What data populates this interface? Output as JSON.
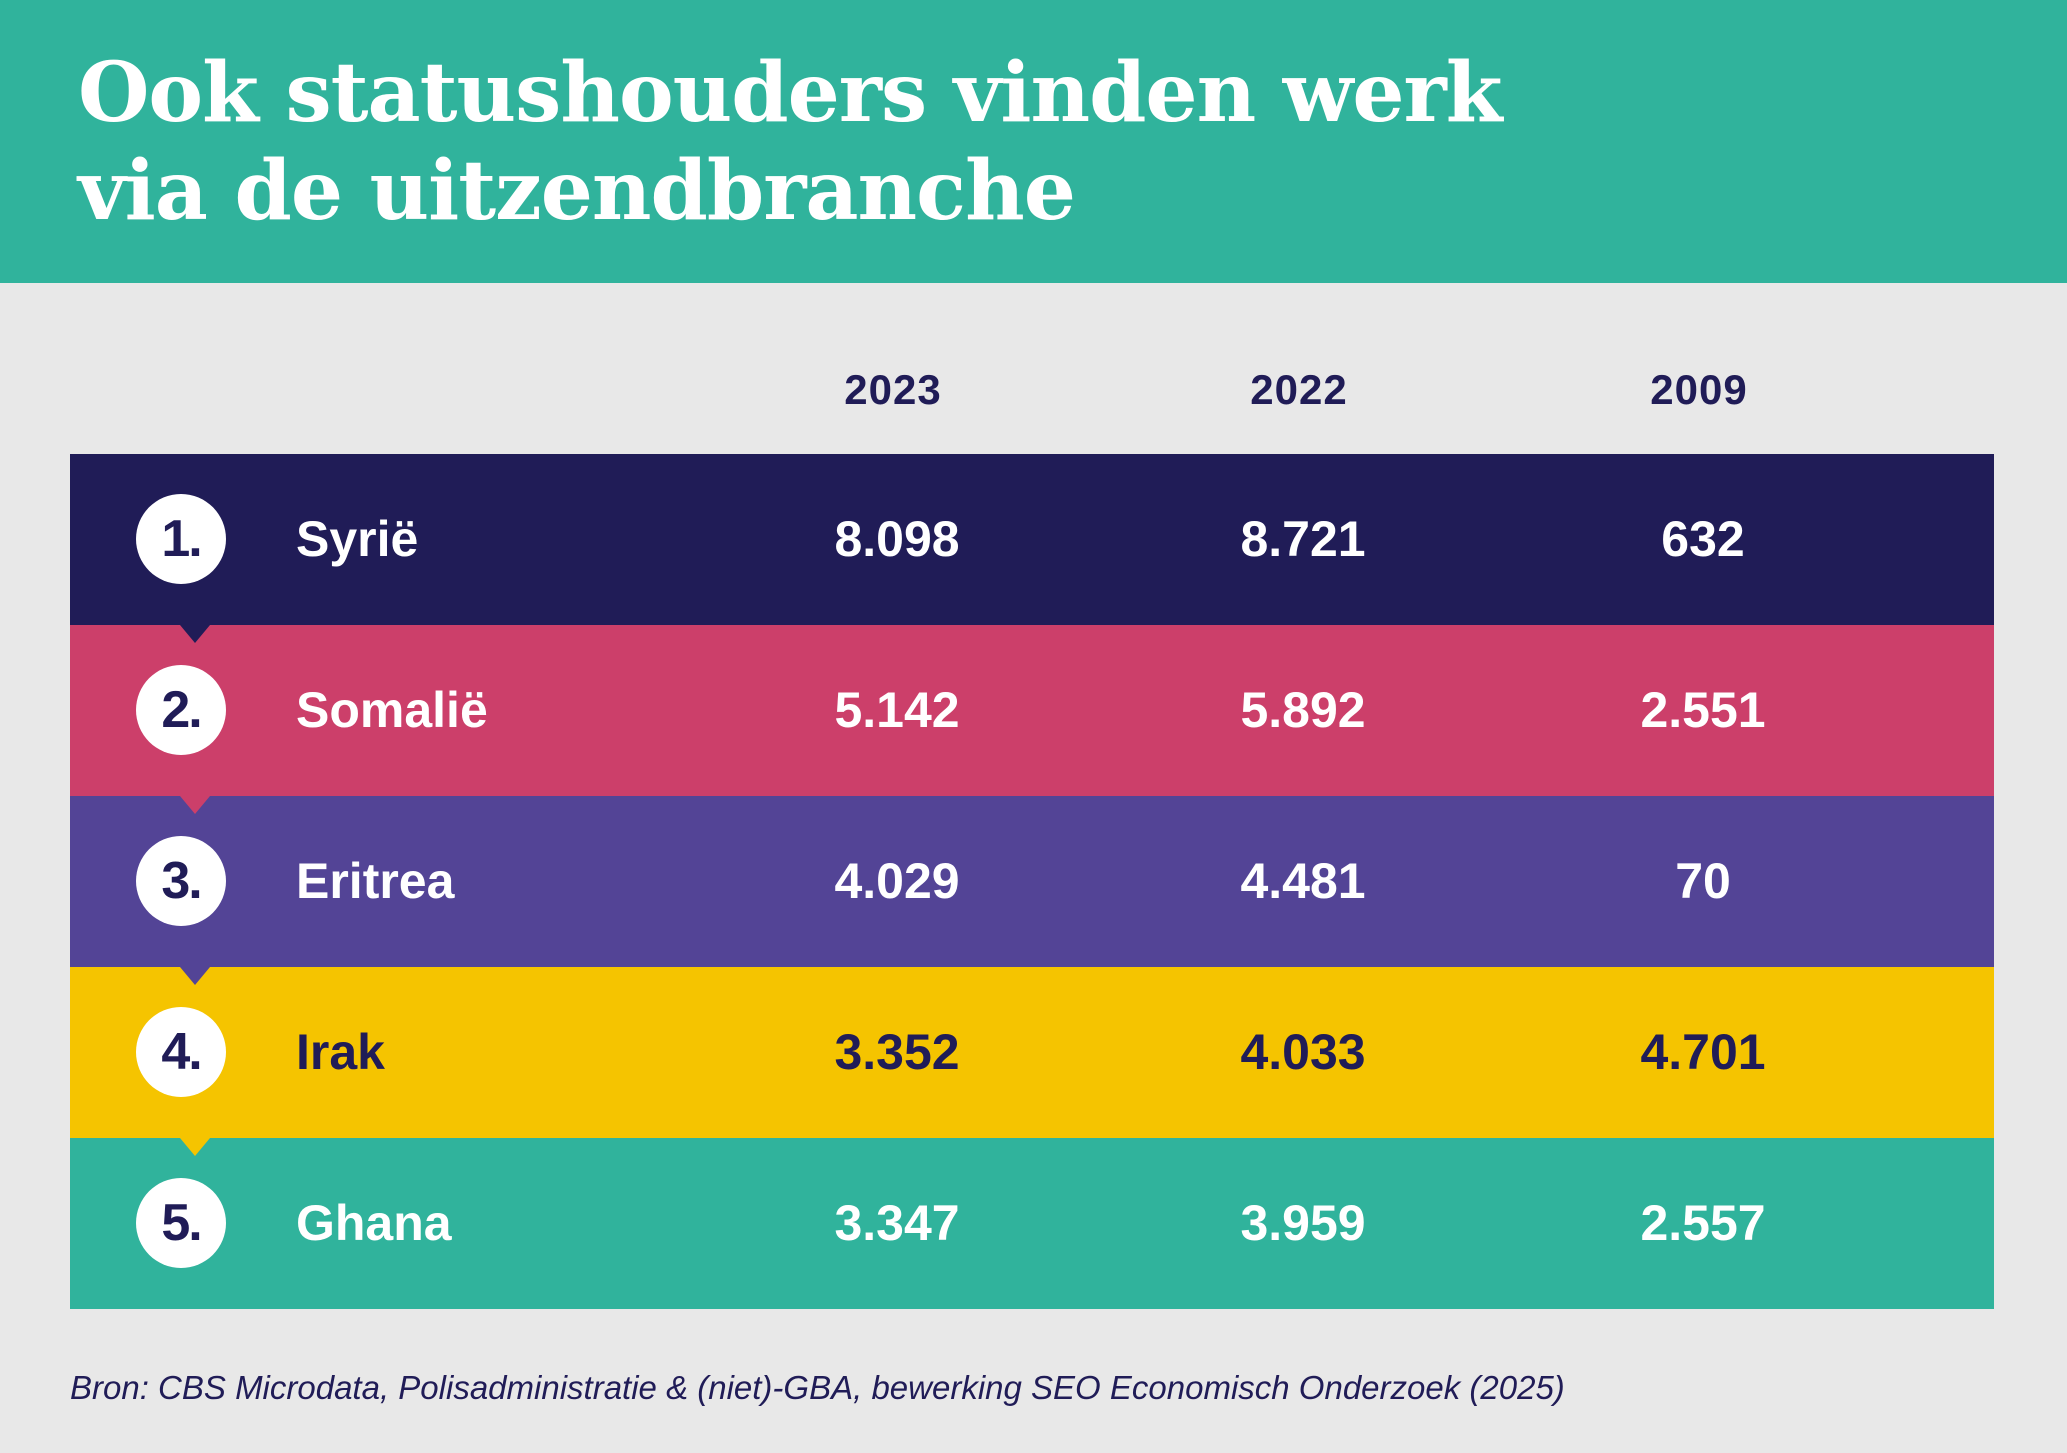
{
  "title": {
    "line1": "Ook statushouders vinden werk",
    "line2": "via de uitzendbranche"
  },
  "colors": {
    "header": "#30b39c",
    "background": "#e8e8e8",
    "navy": "#201c57"
  },
  "chart_data": {
    "type": "table",
    "title": "Ook statushouders vinden werk via de uitzendbranche",
    "columns": [
      "2023",
      "2022",
      "2009"
    ],
    "rows": [
      {
        "rank": "1.",
        "country": "Syrië",
        "values": [
          "8.098",
          "8.721",
          "632"
        ],
        "color": "#201c57",
        "text_color": "#ffffff"
      },
      {
        "rank": "2.",
        "country": "Somalië",
        "values": [
          "5.142",
          "5.892",
          "2.551"
        ],
        "color": "#cc3f6a",
        "text_color": "#ffffff"
      },
      {
        "rank": "3.",
        "country": "Eritrea",
        "values": [
          "4.029",
          "4.481",
          "70"
        ],
        "color": "#534496",
        "text_color": "#ffffff"
      },
      {
        "rank": "4.",
        "country": "Irak",
        "values": [
          "3.352",
          "4.033",
          "4.701"
        ],
        "color": "#f5c400",
        "text_color": "#201c57"
      },
      {
        "rank": "5.",
        "country": "Ghana",
        "values": [
          "3.347",
          "3.959",
          "2.557"
        ],
        "color": "#30b39c",
        "text_color": "#ffffff"
      }
    ]
  },
  "source": "Bron: CBS Microdata, Polisadministratie & (niet)-GBA, bewerking SEO Economisch Onderzoek (2025)"
}
